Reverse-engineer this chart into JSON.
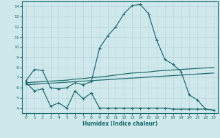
{
  "xlabel": "Humidex (Indice chaleur)",
  "bg_color": "#cfe8ec",
  "grid_color": "#b8d4d8",
  "line_color": "#1a6b6b",
  "xlim": [
    -0.5,
    23.5
  ],
  "ylim": [
    3.5,
    14.5
  ],
  "xticks": [
    0,
    1,
    2,
    3,
    4,
    5,
    6,
    7,
    8,
    9,
    10,
    11,
    12,
    13,
    14,
    15,
    16,
    17,
    18,
    19,
    20,
    21,
    22,
    23
  ],
  "yticks": [
    4,
    5,
    6,
    7,
    8,
    9,
    10,
    11,
    12,
    13,
    14
  ],
  "line1_x": [
    0,
    1,
    2,
    3,
    4,
    5,
    6,
    7,
    8,
    9,
    10,
    11,
    12,
    13,
    14,
    15,
    16,
    17,
    18,
    19,
    20,
    21,
    22,
    23
  ],
  "line1_y": [
    6.7,
    7.8,
    7.7,
    6.0,
    5.9,
    6.0,
    6.5,
    6.3,
    6.6,
    9.9,
    11.1,
    12.0,
    13.3,
    14.1,
    14.2,
    13.3,
    10.7,
    8.8,
    8.3,
    7.6,
    5.3,
    4.8,
    3.9,
    3.8
  ],
  "line2_x": [
    0,
    1,
    2,
    3,
    4,
    5,
    6,
    7,
    8,
    9,
    10,
    11,
    12,
    13,
    14,
    15,
    16,
    17,
    18,
    19,
    20,
    21,
    22,
    23
  ],
  "line2_y": [
    6.5,
    6.55,
    6.6,
    6.65,
    6.7,
    6.75,
    6.85,
    6.9,
    7.0,
    7.05,
    7.15,
    7.25,
    7.35,
    7.45,
    7.5,
    7.55,
    7.65,
    7.7,
    7.75,
    7.8,
    7.85,
    7.9,
    7.95,
    8.0
  ],
  "line3_x": [
    0,
    1,
    2,
    3,
    4,
    5,
    6,
    7,
    8,
    9,
    10,
    11,
    12,
    13,
    14,
    15,
    16,
    17,
    18,
    19,
    20,
    21,
    22,
    23
  ],
  "line3_y": [
    6.3,
    6.35,
    6.4,
    6.45,
    6.5,
    6.55,
    6.6,
    6.65,
    6.7,
    6.75,
    6.8,
    6.85,
    6.9,
    6.95,
    7.0,
    7.05,
    7.1,
    7.15,
    7.2,
    7.25,
    7.3,
    7.35,
    7.4,
    7.45
  ],
  "line4_x": [
    0,
    1,
    2,
    3,
    4,
    5,
    6,
    7,
    8,
    9,
    10,
    11,
    12,
    13,
    14,
    15,
    16,
    17,
    18,
    19,
    20,
    21,
    22,
    23
  ],
  "line4_y": [
    6.5,
    5.7,
    5.9,
    4.2,
    4.5,
    4.0,
    5.7,
    4.9,
    5.5,
    4.0,
    4.0,
    4.0,
    4.0,
    4.0,
    4.0,
    4.0,
    4.0,
    4.0,
    3.9,
    3.9,
    3.9,
    3.9,
    3.9,
    3.8
  ]
}
